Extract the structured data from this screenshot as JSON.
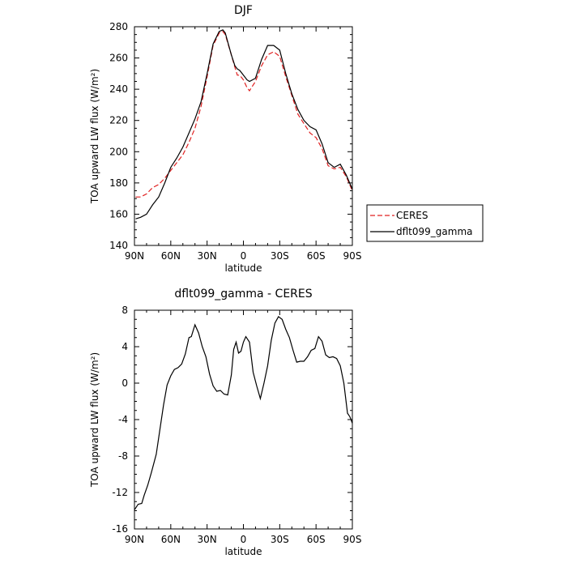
{
  "chart_data": [
    {
      "type": "line",
      "title": "DJF",
      "xlabel": "latitude",
      "ylabel": "TOA upward LW flux (W/m²)",
      "xlim": [
        90,
        -90
      ],
      "ylim": [
        140,
        280
      ],
      "xticks": [
        "90N",
        "60N",
        "30N",
        "0",
        "30S",
        "60S",
        "90S"
      ],
      "yticks": [
        "140",
        "160",
        "180",
        "200",
        "220",
        "240",
        "260",
        "280"
      ],
      "legend": "outside-right",
      "series": [
        {
          "name": "CERES",
          "color": "#e02020",
          "dash": true,
          "x": [
            89,
            85,
            80,
            75,
            70,
            65,
            60,
            55,
            50,
            45,
            40,
            35,
            30,
            25,
            20,
            17,
            15,
            10,
            7,
            5,
            3,
            0,
            -3,
            -5,
            -10,
            -15,
            -20,
            -25,
            -30,
            -35,
            -40,
            -45,
            -50,
            -55,
            -60,
            -65,
            -70,
            -75,
            -80,
            -85,
            -90
          ],
          "y": [
            171,
            171,
            173,
            177,
            179,
            183,
            188,
            193,
            198,
            206,
            215,
            229,
            248,
            268,
            276,
            277,
            275,
            262,
            254,
            249,
            249,
            246,
            241,
            239,
            245,
            255,
            262,
            264,
            261,
            248,
            236,
            224,
            218,
            212,
            209,
            202,
            191,
            189,
            190,
            184,
            175
          ]
        },
        {
          "name": "dflt099_gamma",
          "color": "#000000",
          "dash": false,
          "x": [
            89,
            85,
            80,
            75,
            70,
            65,
            60,
            55,
            50,
            45,
            40,
            35,
            30,
            25,
            20,
            17,
            15,
            10,
            7,
            5,
            3,
            0,
            -3,
            -5,
            -10,
            -15,
            -20,
            -25,
            -30,
            -35,
            -40,
            -45,
            -50,
            -55,
            -60,
            -65,
            -70,
            -75,
            -80,
            -85,
            -90
          ],
          "y": [
            157,
            158,
            160,
            166,
            171,
            180,
            190,
            196,
            203,
            212,
            221,
            232,
            250,
            269,
            277,
            278,
            276,
            262,
            255,
            253,
            252,
            249,
            246,
            245,
            247,
            259,
            268,
            268,
            265,
            250,
            237,
            227,
            220,
            216,
            214,
            205,
            193,
            190,
            192,
            185,
            176
          ]
        }
      ]
    },
    {
      "type": "line",
      "title": "dflt099_gamma - CERES",
      "xlabel": "latitude",
      "ylabel": "TOA upward LW flux (W/m²)",
      "xlim": [
        90,
        -90
      ],
      "ylim": [
        -16,
        8
      ],
      "xticks": [
        "90N",
        "60N",
        "30N",
        "0",
        "30S",
        "60S",
        "90S"
      ],
      "yticks": [
        "8",
        "4",
        "0",
        "-4",
        "-8",
        "-12",
        "-16"
      ],
      "series": [
        {
          "name": "dflt099_gamma - CERES",
          "color": "#000000",
          "x": [
            90,
            87,
            84,
            82,
            79,
            76,
            72,
            69,
            66,
            63,
            60,
            57,
            54,
            51,
            48,
            45,
            43,
            40,
            37,
            34,
            31,
            28,
            25,
            22,
            19,
            16,
            13,
            10,
            8,
            6,
            4,
            2,
            0,
            -2,
            -5,
            -8,
            -11,
            -14,
            -17,
            -20,
            -23,
            -26,
            -29,
            -32,
            -35,
            -38,
            -41,
            -44,
            -47,
            -50,
            -53,
            -56,
            -59,
            -62,
            -65,
            -68,
            -71,
            -74,
            -77,
            -80,
            -83,
            -86,
            -88,
            -90
          ],
          "y": [
            -13.9,
            -13.3,
            -13.2,
            -12.3,
            -11.2,
            -9.8,
            -7.8,
            -5.1,
            -2.4,
            -0.2,
            0.8,
            1.5,
            1.7,
            2.1,
            3.2,
            5.0,
            5.1,
            6.4,
            5.5,
            4.0,
            2.9,
            1.0,
            -0.3,
            -0.9,
            -0.8,
            -1.2,
            -1.3,
            0.9,
            3.7,
            4.5,
            3.3,
            3.5,
            4.5,
            5.1,
            4.5,
            1.2,
            -0.3,
            -1.7,
            0.0,
            1.9,
            4.7,
            6.6,
            7.3,
            7.0,
            5.9,
            5.0,
            3.6,
            2.3,
            2.4,
            2.4,
            2.9,
            3.6,
            3.8,
            5.1,
            4.6,
            3.1,
            2.8,
            2.9,
            2.7,
            1.9,
            0.0,
            -3.3,
            -3.7,
            -4.4
          ]
        }
      ]
    }
  ]
}
